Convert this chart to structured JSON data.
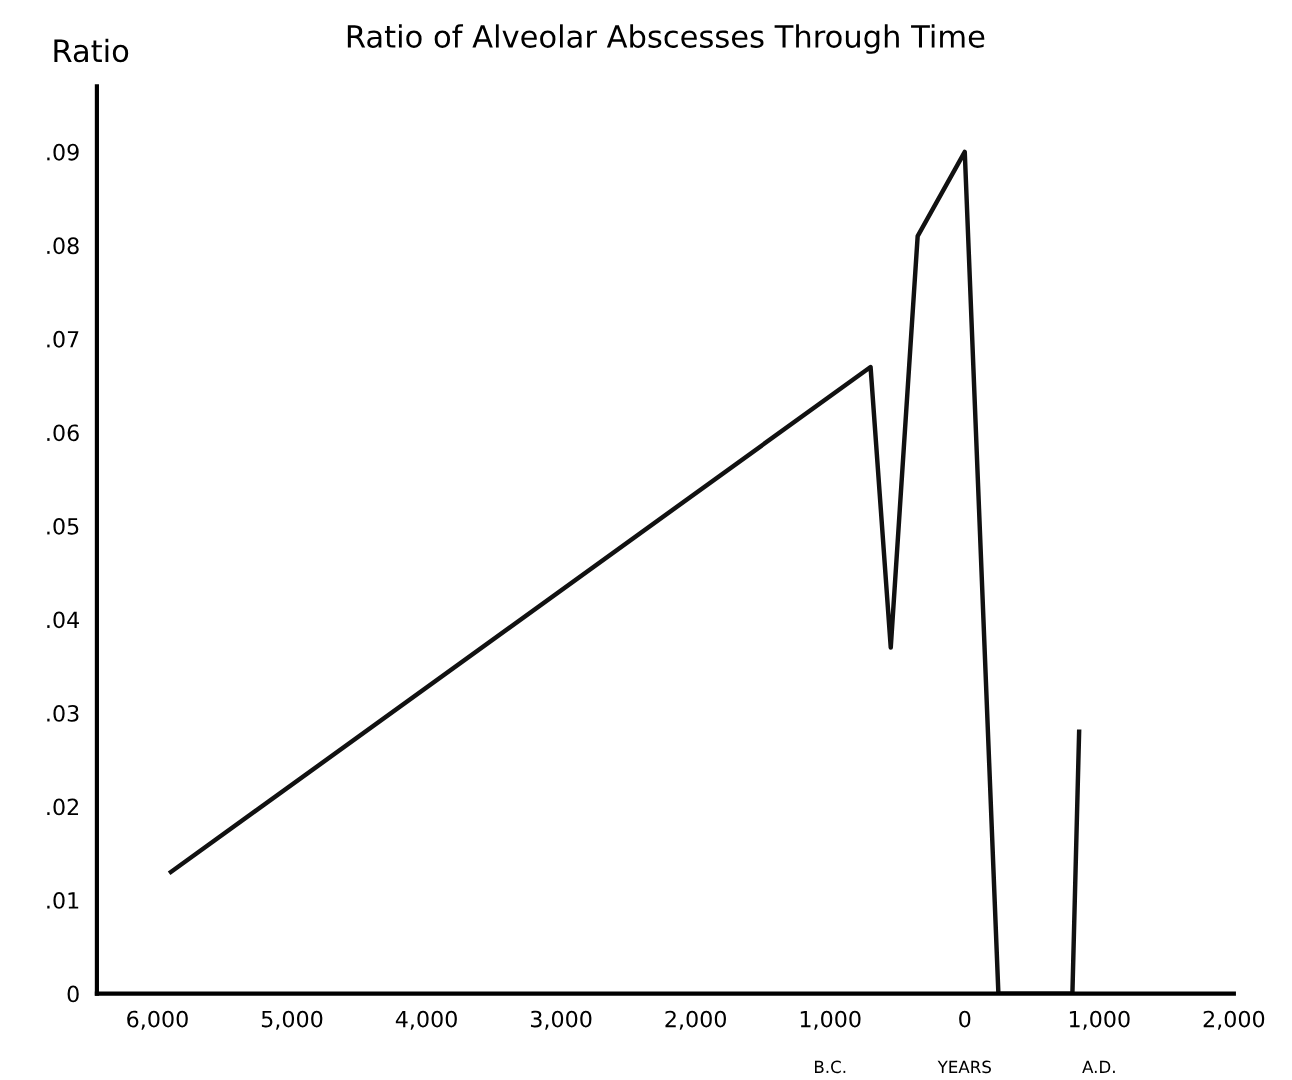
{
  "chart_data": {
    "type": "line",
    "title": "Ratio of Alveolar Abscesses Through Time",
    "ylabel": "Ratio",
    "x": [
      -5900,
      -700,
      -550,
      -350,
      0,
      250,
      800,
      850
    ],
    "series": [
      {
        "color": "#111111",
        "values": [
          0.013,
          0.067,
          0.037,
          0.081,
          0.09,
          0,
          0,
          0.028
        ]
      }
    ],
    "xlim": [
      -6450,
      2000
    ],
    "ylim": [
      0,
      0.097
    ],
    "xticks": [
      {
        "value": -6000,
        "label": "6,000"
      },
      {
        "value": -5000,
        "label": "5,000"
      },
      {
        "value": -4000,
        "label": "4,000"
      },
      {
        "value": -3000,
        "label": "3,000"
      },
      {
        "value": -2000,
        "label": "2,000"
      },
      {
        "value": -1000,
        "label": "1,000"
      },
      0,
      {
        "value": 1000,
        "label": "1,000"
      },
      {
        "value": 2000,
        "label": "2,000"
      }
    ],
    "yticks": [
      0,
      {
        "value": 0.01,
        "label": ".01"
      },
      {
        "value": 0.02,
        "label": ".02"
      },
      {
        "value": 0.03,
        "label": ".03"
      },
      {
        "value": 0.04,
        "label": ".04"
      },
      {
        "value": 0.05,
        "label": ".05"
      },
      {
        "value": 0.06,
        "label": ".06"
      },
      {
        "value": 0.07,
        "label": ".07"
      },
      {
        "value": 0.08,
        "label": ".08"
      },
      {
        "value": 0.09,
        "label": ".09"
      }
    ],
    "annotations": [
      "B.C.",
      "YEARS",
      "A.D."
    ],
    "grid": false,
    "marker": "none",
    "line_style": "solid"
  }
}
